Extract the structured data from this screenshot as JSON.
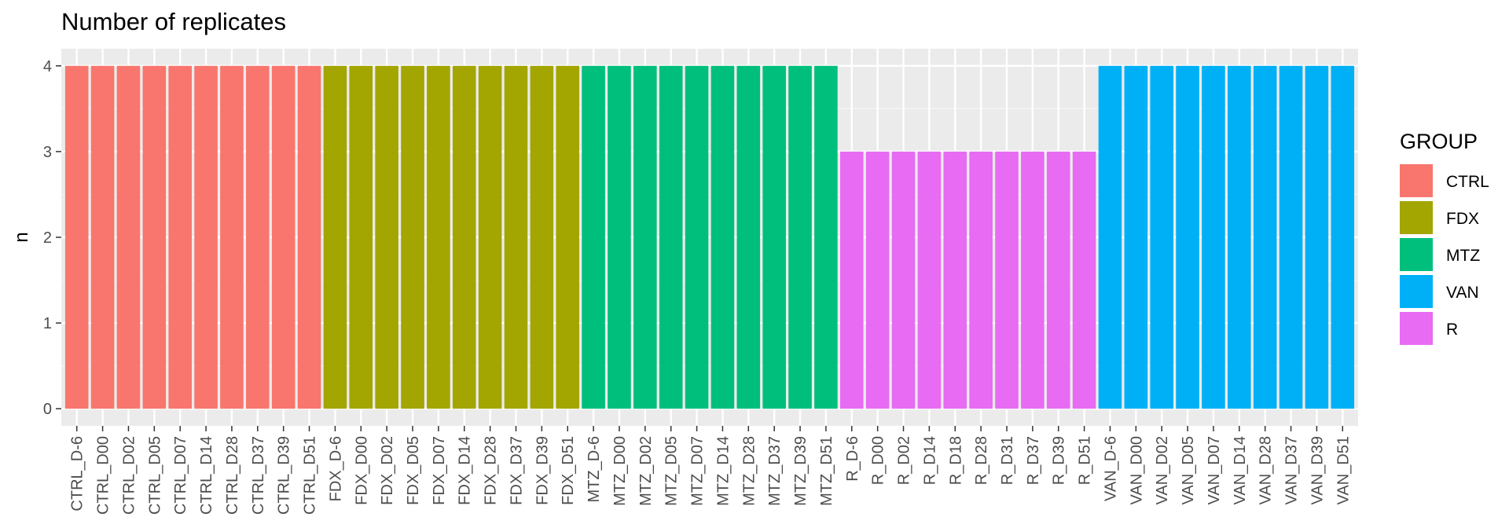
{
  "chart_data": {
    "type": "bar",
    "title": "Number of replicates",
    "xlabel": "",
    "ylabel": "n",
    "ylim": [
      0,
      4
    ],
    "yticks": [
      0,
      1,
      2,
      3,
      4
    ],
    "grid": true,
    "legend": {
      "title": "GROUP",
      "position": "right"
    },
    "groups": [
      {
        "name": "CTRL",
        "color": "#F8766D"
      },
      {
        "name": "FDX",
        "color": "#A3A500"
      },
      {
        "name": "MTZ",
        "color": "#00BF7D"
      },
      {
        "name": "VAN",
        "color": "#00B0F6"
      },
      {
        "name": "R",
        "color": "#E76BF3"
      }
    ],
    "categories": [
      "CTRL_D-6",
      "CTRL_D00",
      "CTRL_D02",
      "CTRL_D05",
      "CTRL_D07",
      "CTRL_D14",
      "CTRL_D28",
      "CTRL_D37",
      "CTRL_D39",
      "CTRL_D51",
      "FDX_D-6",
      "FDX_D00",
      "FDX_D02",
      "FDX_D05",
      "FDX_D07",
      "FDX_D14",
      "FDX_D28",
      "FDX_D37",
      "FDX_D39",
      "FDX_D51",
      "MTZ_D-6",
      "MTZ_D00",
      "MTZ_D02",
      "MTZ_D05",
      "MTZ_D07",
      "MTZ_D14",
      "MTZ_D28",
      "MTZ_D37",
      "MTZ_D39",
      "MTZ_D51",
      "R_D-6",
      "R_D00",
      "R_D02",
      "R_D14",
      "R_D18",
      "R_D28",
      "R_D31",
      "R_D37",
      "R_D39",
      "R_D51",
      "VAN_D-6",
      "VAN_D00",
      "VAN_D02",
      "VAN_D05",
      "VAN_D07",
      "VAN_D14",
      "VAN_D28",
      "VAN_D37",
      "VAN_D39",
      "VAN_D51"
    ],
    "values": [
      4,
      4,
      4,
      4,
      4,
      4,
      4,
      4,
      4,
      4,
      4,
      4,
      4,
      4,
      4,
      4,
      4,
      4,
      4,
      4,
      4,
      4,
      4,
      4,
      4,
      4,
      4,
      4,
      4,
      4,
      3,
      3,
      3,
      3,
      3,
      3,
      3,
      3,
      3,
      3,
      4,
      4,
      4,
      4,
      4,
      4,
      4,
      4,
      4,
      4
    ],
    "bar_group": [
      "CTRL",
      "CTRL",
      "CTRL",
      "CTRL",
      "CTRL",
      "CTRL",
      "CTRL",
      "CTRL",
      "CTRL",
      "CTRL",
      "FDX",
      "FDX",
      "FDX",
      "FDX",
      "FDX",
      "FDX",
      "FDX",
      "FDX",
      "FDX",
      "FDX",
      "MTZ",
      "MTZ",
      "MTZ",
      "MTZ",
      "MTZ",
      "MTZ",
      "MTZ",
      "MTZ",
      "MTZ",
      "MTZ",
      "R",
      "R",
      "R",
      "R",
      "R",
      "R",
      "R",
      "R",
      "R",
      "R",
      "VAN",
      "VAN",
      "VAN",
      "VAN",
      "VAN",
      "VAN",
      "VAN",
      "VAN",
      "VAN",
      "VAN"
    ]
  }
}
